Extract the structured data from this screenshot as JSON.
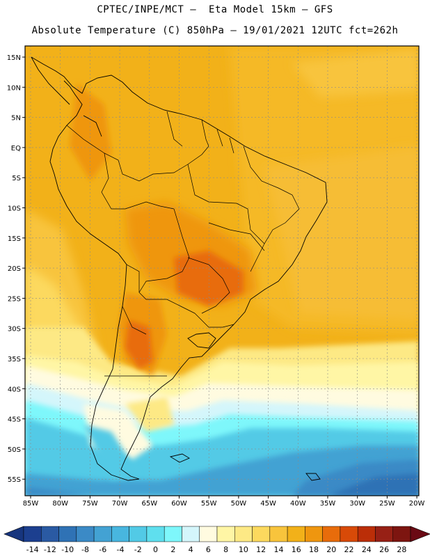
{
  "header": {
    "line1": "CPTEC/INPE/MCT –  Eta Model 15km – GFS",
    "line2": "Absolute Temperature (C) 850hPa – 19/01/2021 12UTC fct=262h"
  },
  "map": {
    "lon_labels": [
      "85W",
      "80W",
      "75W",
      "70W",
      "65W",
      "60W",
      "55W",
      "50W",
      "45W",
      "40W",
      "35W",
      "30W",
      "25W",
      "20W"
    ],
    "lat_labels": [
      "15N",
      "10N",
      "5N",
      "EQ",
      "5S",
      "10S",
      "15S",
      "20S",
      "25S",
      "30S",
      "35S",
      "40S",
      "45S",
      "50S",
      "55S"
    ]
  },
  "colorbar": {
    "labels": [
      "-14",
      "-12",
      "-10",
      "-8",
      "-6",
      "-4",
      "-2",
      "0",
      "2",
      "4",
      "6",
      "8",
      "10",
      "12",
      "14",
      "16",
      "18",
      "20",
      "22",
      "24",
      "26",
      "28"
    ],
    "colors": [
      "#1c3f8f",
      "#2a5aa3",
      "#2f72b5",
      "#3b8ac6",
      "#43a2d3",
      "#48b6df",
      "#52cae6",
      "#5fdfee",
      "#7ef7fb",
      "#d4f6fb",
      "#fffbe0",
      "#fff6a5",
      "#fde985",
      "#fcd95e",
      "#f8c43c",
      "#f2b119",
      "#ef960f",
      "#e86c0b",
      "#d84a08",
      "#bb2e08",
      "#972015",
      "#7d1510"
    ],
    "end_left": "#17357e",
    "end_right": "#6a0a14"
  }
}
